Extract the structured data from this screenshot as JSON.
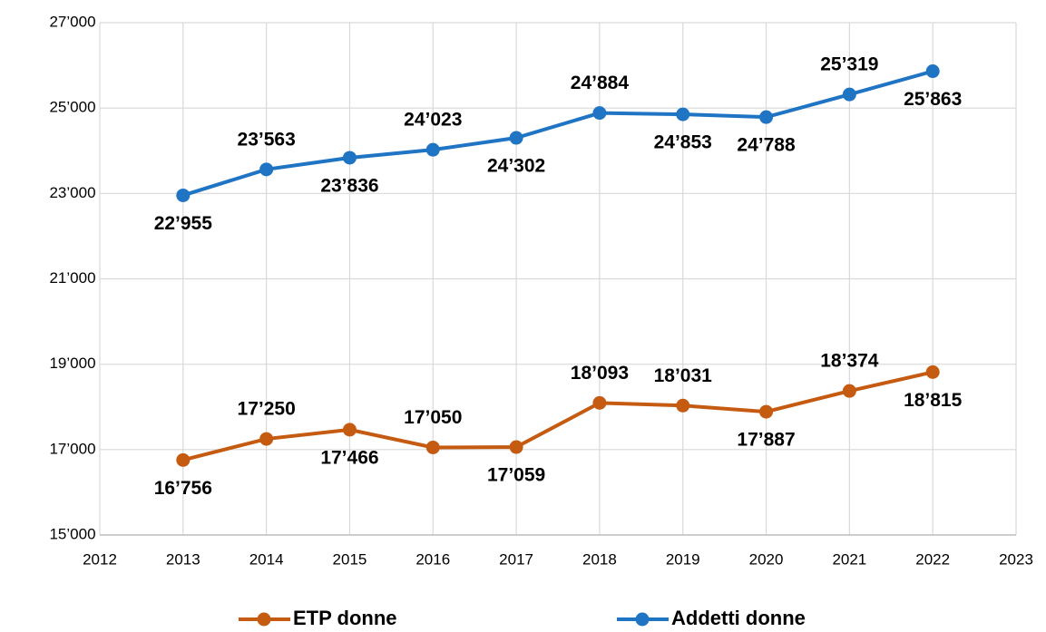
{
  "chart_data": {
    "type": "line",
    "x": [
      2013,
      2014,
      2015,
      2016,
      2017,
      2018,
      2019,
      2020,
      2021,
      2022
    ],
    "series": [
      {
        "name": "ETP donne",
        "color": "#c55a11",
        "values": [
          16756,
          17250,
          17466,
          17050,
          17059,
          18093,
          18031,
          17887,
          18374,
          18815
        ],
        "value_labels": [
          "16’756",
          "17’250",
          "17’466",
          "17’050",
          "17’059",
          "18’093",
          "18’031",
          "17’887",
          "18’374",
          "18’815"
        ]
      },
      {
        "name": "Addetti donne",
        "color": "#1f74c4",
        "values": [
          22955,
          23563,
          23836,
          24023,
          24302,
          24884,
          24853,
          24788,
          25319,
          25863
        ],
        "value_labels": [
          "22’955",
          "23’563",
          "23’836",
          "24’023",
          "24’302",
          "24’884",
          "24’853",
          "24’788",
          "25’319",
          "25’863"
        ]
      }
    ],
    "xlim": [
      2012,
      2023
    ],
    "xticks": [
      2012,
      2013,
      2014,
      2015,
      2016,
      2017,
      2018,
      2019,
      2020,
      2021,
      2022,
      2023
    ],
    "ylim": [
      15000,
      27000
    ],
    "yticks": [
      {
        "value": 15000,
        "label": "15’000"
      },
      {
        "value": 17000,
        "label": "17’000"
      },
      {
        "value": 19000,
        "label": "19’000"
      },
      {
        "value": 21000,
        "label": "21’000"
      },
      {
        "value": 23000,
        "label": "23’000"
      },
      {
        "value": 25000,
        "label": "25’000"
      },
      {
        "value": 27000,
        "label": "27’000"
      }
    ],
    "grid": true,
    "legend": "bottom"
  }
}
